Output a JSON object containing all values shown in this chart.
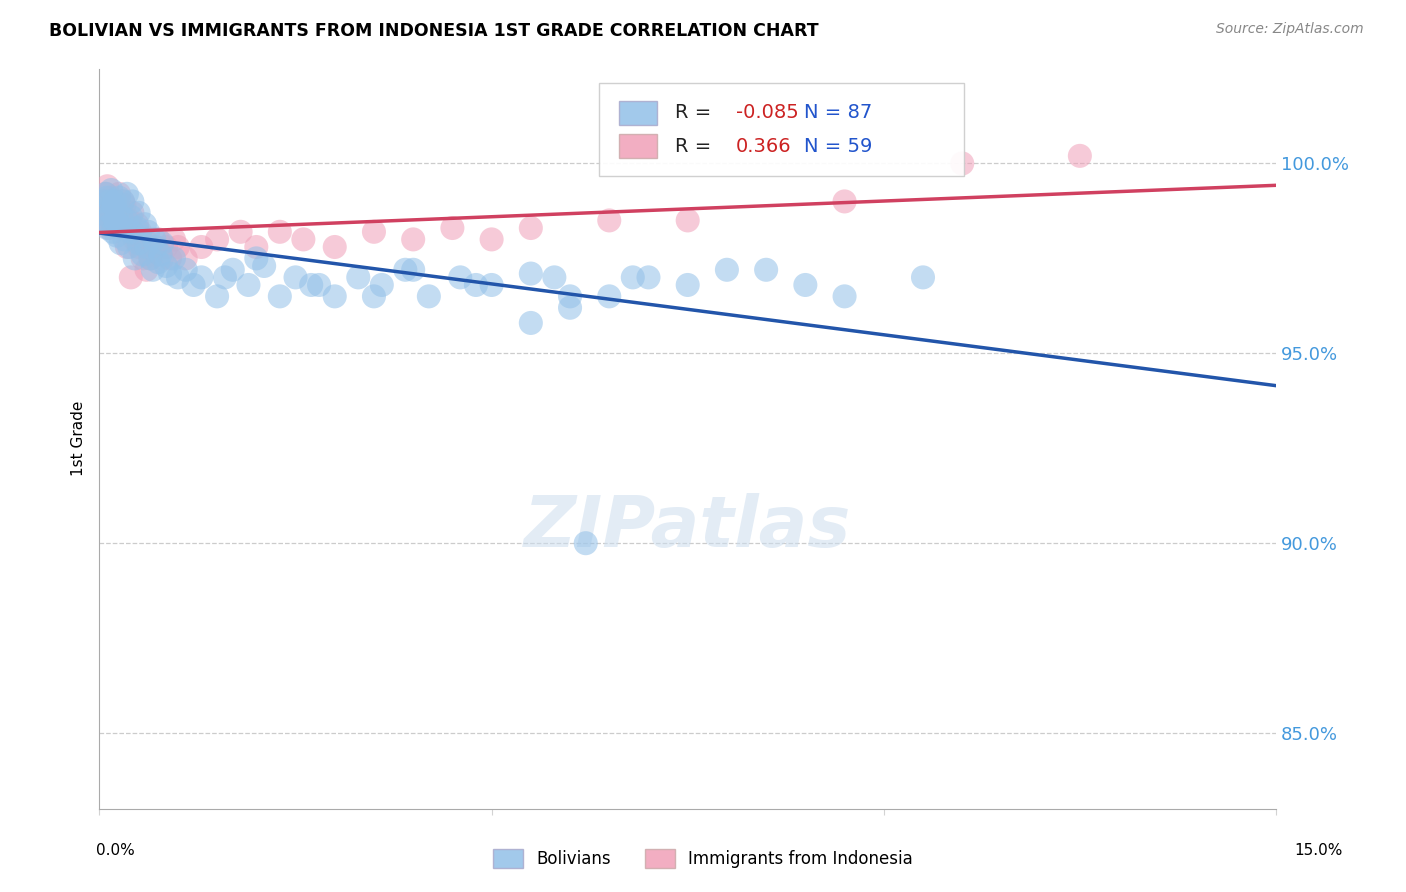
{
  "title": "BOLIVIAN VS IMMIGRANTS FROM INDONESIA 1ST GRADE CORRELATION CHART",
  "source": "Source: ZipAtlas.com",
  "ylabel": "1st Grade",
  "legend_blue_label": "Bolivians",
  "legend_pink_label": "Immigrants from Indonesia",
  "blue_R": -0.085,
  "blue_N": 87,
  "pink_R": 0.366,
  "pink_N": 59,
  "blue_color": "#92c0e8",
  "pink_color": "#f0a0b8",
  "blue_line_color": "#2255aa",
  "pink_line_color": "#d04060",
  "xmin": 0.0,
  "xmax": 15.0,
  "ymin": 83.0,
  "ymax": 102.5,
  "ytick_vals": [
    85.0,
    90.0,
    95.0,
    100.0
  ],
  "blue_x": [
    0.05,
    0.07,
    0.08,
    0.09,
    0.1,
    0.1,
    0.12,
    0.13,
    0.14,
    0.15,
    0.15,
    0.17,
    0.18,
    0.2,
    0.2,
    0.22,
    0.23,
    0.25,
    0.25,
    0.27,
    0.28,
    0.3,
    0.3,
    0.32,
    0.35,
    0.35,
    0.38,
    0.4,
    0.4,
    0.42,
    0.45,
    0.48,
    0.5,
    0.5,
    0.52,
    0.55,
    0.58,
    0.6,
    0.62,
    0.65,
    0.68,
    0.7,
    0.72,
    0.75,
    0.78,
    0.8,
    0.85,
    0.9,
    0.95,
    1.0,
    1.1,
    1.2,
    1.3,
    1.5,
    1.7,
    1.9,
    2.1,
    2.3,
    2.5,
    2.8,
    3.0,
    3.3,
    3.6,
    3.9,
    4.2,
    4.6,
    5.0,
    5.5,
    6.0,
    6.8,
    7.5,
    8.5,
    9.5,
    10.5,
    2.0,
    1.6,
    2.7,
    3.5,
    4.0,
    4.8,
    5.8,
    6.5,
    7.0,
    8.0,
    9.0,
    5.5,
    6.0
  ],
  "blue_y": [
    99.0,
    98.5,
    99.2,
    98.8,
    99.1,
    98.3,
    98.6,
    99.0,
    98.4,
    98.7,
    99.3,
    98.2,
    98.9,
    98.5,
    99.0,
    98.1,
    98.7,
    98.4,
    99.1,
    97.9,
    98.6,
    98.3,
    99.0,
    98.0,
    98.5,
    99.2,
    97.8,
    98.6,
    98.2,
    99.0,
    97.5,
    98.3,
    97.9,
    98.7,
    98.1,
    97.6,
    98.4,
    97.8,
    98.2,
    97.5,
    97.2,
    98.0,
    97.8,
    97.4,
    97.6,
    97.9,
    97.3,
    97.1,
    97.5,
    97.0,
    97.2,
    96.8,
    97.0,
    96.5,
    97.2,
    96.8,
    97.3,
    96.5,
    97.0,
    96.8,
    96.5,
    97.0,
    96.8,
    97.2,
    96.5,
    97.0,
    96.8,
    97.1,
    96.5,
    97.0,
    96.8,
    97.2,
    96.5,
    97.0,
    97.5,
    97.0,
    96.8,
    96.5,
    97.2,
    96.8,
    97.0,
    96.5,
    97.0,
    97.2,
    96.8,
    95.8,
    96.2
  ],
  "blue_outlier_x": [
    6.2
  ],
  "blue_outlier_y": [
    90.0
  ],
  "pink_x": [
    0.05,
    0.07,
    0.08,
    0.1,
    0.1,
    0.12,
    0.14,
    0.15,
    0.15,
    0.17,
    0.18,
    0.2,
    0.2,
    0.22,
    0.25,
    0.25,
    0.27,
    0.3,
    0.3,
    0.32,
    0.35,
    0.38,
    0.4,
    0.42,
    0.45,
    0.48,
    0.5,
    0.52,
    0.55,
    0.58,
    0.6,
    0.65,
    0.7,
    0.75,
    0.8,
    0.85,
    0.9,
    0.95,
    1.0,
    1.1,
    1.3,
    1.5,
    1.8,
    2.0,
    2.3,
    2.6,
    3.0,
    3.5,
    4.0,
    4.5,
    5.0,
    5.5,
    6.5,
    7.5,
    9.5,
    11.0,
    12.5,
    0.4,
    0.6
  ],
  "pink_y": [
    99.0,
    98.5,
    99.2,
    98.7,
    99.4,
    98.3,
    98.8,
    99.1,
    98.5,
    98.9,
    98.6,
    99.0,
    98.4,
    98.7,
    99.2,
    98.3,
    98.8,
    99.0,
    98.5,
    98.9,
    97.8,
    98.5,
    98.3,
    98.7,
    98.0,
    98.4,
    97.8,
    98.2,
    97.5,
    98.0,
    97.8,
    97.5,
    97.8,
    98.0,
    97.5,
    97.8,
    97.5,
    98.0,
    97.8,
    97.5,
    97.8,
    98.0,
    98.2,
    97.8,
    98.2,
    98.0,
    97.8,
    98.2,
    98.0,
    98.3,
    98.0,
    98.3,
    98.5,
    98.5,
    99.0,
    100.0,
    100.2,
    97.0,
    97.2
  ]
}
